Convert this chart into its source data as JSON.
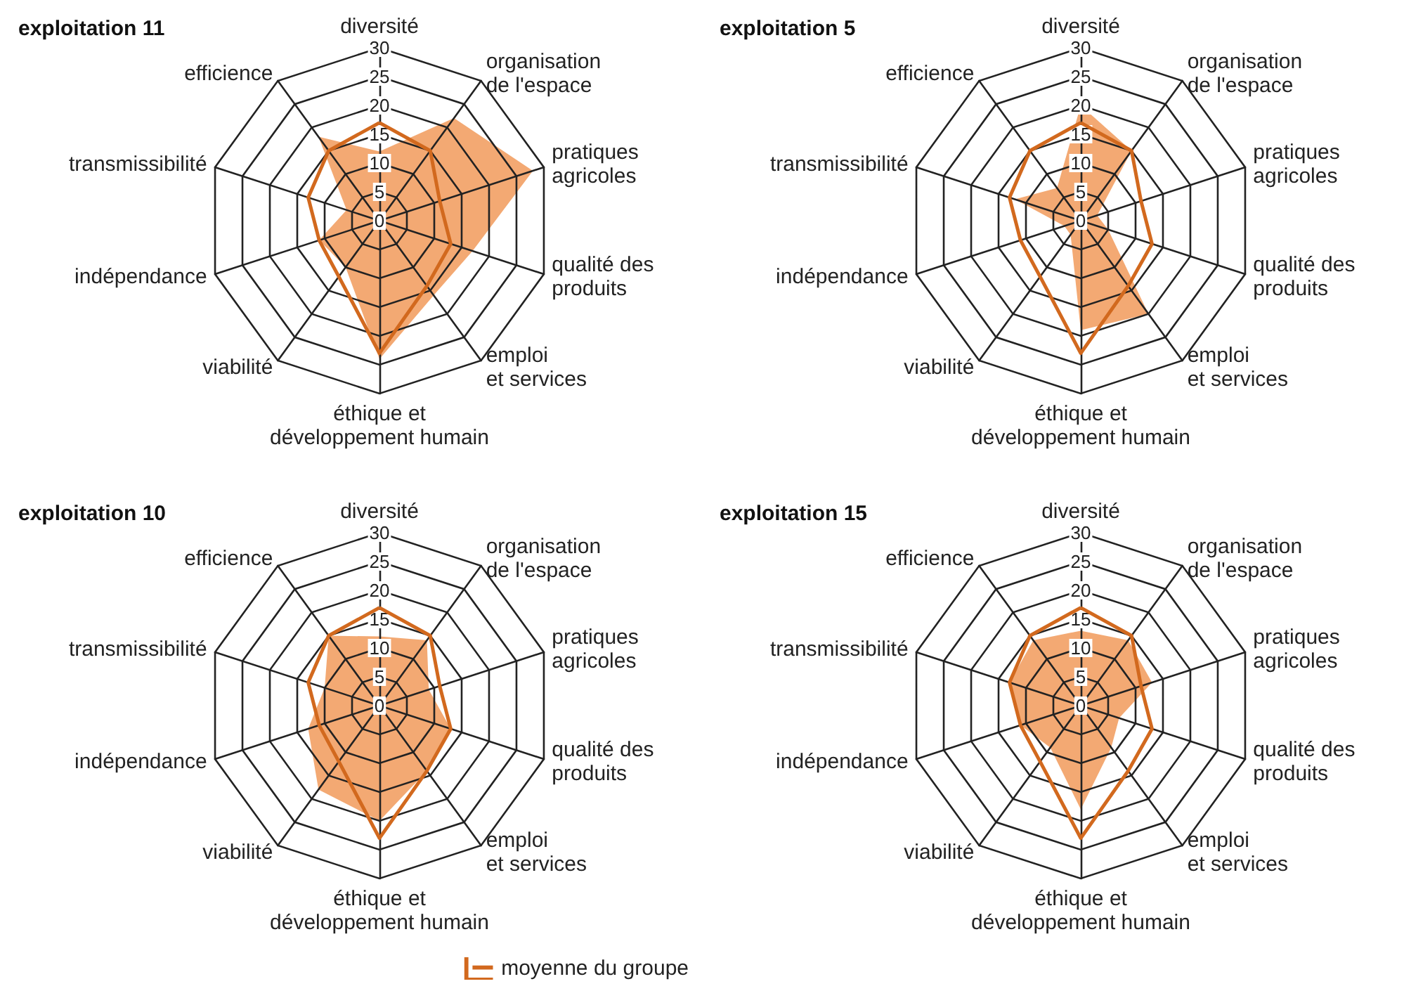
{
  "chart_data": [
    {
      "type": "radar",
      "title": "exploitation 11",
      "categories": [
        "diversité",
        "organisation\nde l'espace",
        "pratiques\nagricoles",
        "qualité des\nproduits",
        "emploi\net services",
        "éthique et\ndéveloppement humain",
        "viabilité",
        "indépendance",
        "transmissibilité",
        "efficience"
      ],
      "ylim": [
        0,
        30
      ],
      "yticks": [
        0,
        5,
        10,
        15,
        20,
        25,
        30
      ],
      "series": [
        {
          "type": "area",
          "color": "#f2a46c",
          "values": [
            12,
            22,
            28,
            17,
            16,
            24,
            10,
            11,
            6,
            18
          ]
        },
        {
          "type": "radar",
          "color": "#d2691e",
          "values": [
            17,
            15,
            11,
            13,
            14,
            23,
            12,
            11,
            13,
            15
          ]
        }
      ]
    },
    {
      "type": "radar",
      "title": "exploitation 5",
      "categories": [
        "diversité",
        "organisation\nde l'espace",
        "pratiques\nagricoles",
        "qualité des\nproduits",
        "emploi\net services",
        "éthique et\ndéveloppement humain",
        "viabilité",
        "indépendance",
        "transmissibilité",
        "efficience"
      ],
      "ylim": [
        0,
        30
      ],
      "yticks": [
        0,
        5,
        10,
        15,
        20,
        25,
        30
      ],
      "series": [
        {
          "type": "area",
          "color": "#f2a46c",
          "values": [
            20,
            15,
            3,
            5,
            20,
            19,
            3,
            3,
            12,
            7
          ]
        },
        {
          "type": "radar",
          "color": "#d2691e",
          "values": [
            17,
            15,
            11,
            13,
            14,
            23,
            12,
            11,
            13,
            15
          ]
        }
      ]
    },
    {
      "type": "radar",
      "title": "exploitation 10",
      "categories": [
        "diversité",
        "organisation\nde l'espace",
        "pratiques\nagricoles",
        "qualité des\nproduits",
        "emploi\net services",
        "éthique et\ndéveloppement humain",
        "viabilité",
        "indépendance",
        "transmissibilité",
        "efficience"
      ],
      "ylim": [
        0,
        30
      ],
      "yticks": [
        0,
        5,
        10,
        15,
        20,
        25,
        30
      ],
      "legend": "bottom",
      "series": [
        {
          "type": "area",
          "color": "#f2a46c",
          "values": [
            12,
            14,
            9,
            13,
            14,
            20,
            18,
            13,
            10,
            15
          ]
        },
        {
          "type": "radar",
          "color": "#d2691e",
          "name": "moyenne du groupe",
          "values": [
            17,
            15,
            11,
            13,
            14,
            23,
            12,
            11,
            13,
            15
          ]
        }
      ]
    },
    {
      "type": "radar",
      "title": "exploitation 15",
      "categories": [
        "diversité",
        "organisation\nde l'espace",
        "pratiques\nagricoles",
        "qualité des\nproduits",
        "emploi\net services",
        "éthique et\ndéveloppement humain",
        "viabilité",
        "indépendance",
        "transmissibilité",
        "efficience"
      ],
      "ylim": [
        0,
        30
      ],
      "yticks": [
        0,
        5,
        10,
        15,
        20,
        25,
        30
      ],
      "series": [
        {
          "type": "area",
          "color": "#f2a46c",
          "values": [
            13,
            14,
            13,
            7,
            9,
            18,
            9,
            11,
            13,
            14
          ]
        },
        {
          "type": "radar",
          "color": "#d2691e",
          "values": [
            17,
            15,
            11,
            13,
            14,
            23,
            12,
            11,
            13,
            15
          ]
        }
      ]
    }
  ]
}
